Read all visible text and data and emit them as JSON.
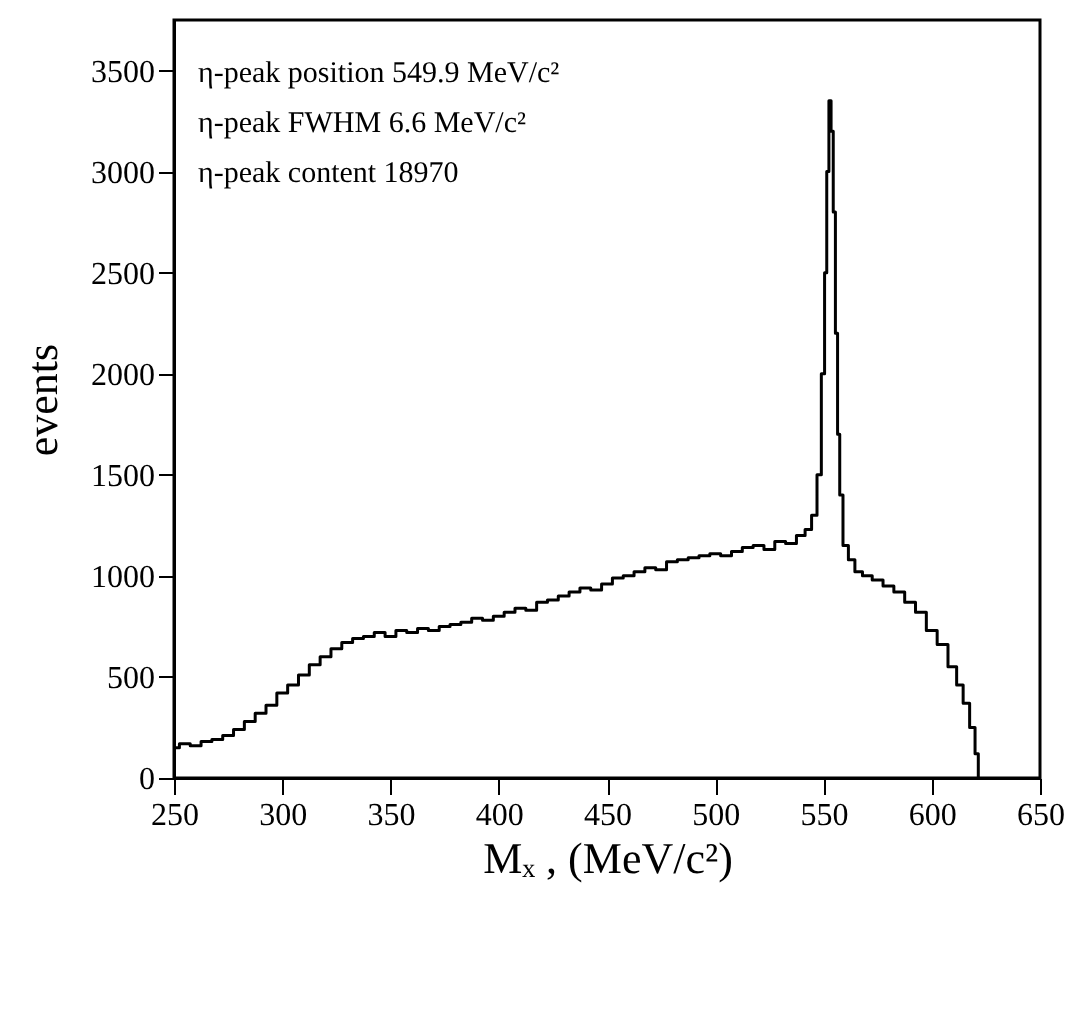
{
  "chart_data": {
    "type": "step",
    "xlabel": "Mₓ ,  (MeV/c²)",
    "ylabel": "events",
    "annotations": [
      "η-peak position  549.9 MeV/c²",
      "η-peak FWHM       6.6 MeV/c²",
      "η-peak content 18970"
    ],
    "xlim": [
      250,
      650
    ],
    "xticks": [
      250,
      300,
      350,
      400,
      450,
      500,
      550,
      600,
      650
    ],
    "ylim": [
      0,
      3750
    ],
    "yticks": [
      0,
      500,
      1000,
      1500,
      2000,
      2500,
      3000,
      3500
    ],
    "grid": false,
    "series": [
      {
        "color": "#000000",
        "x": [
          250,
          255,
          260,
          265,
          270,
          275,
          280,
          285,
          290,
          295,
          300,
          305,
          310,
          315,
          320,
          325,
          330,
          335,
          340,
          345,
          350,
          355,
          360,
          365,
          370,
          375,
          380,
          385,
          390,
          395,
          400,
          405,
          410,
          415,
          420,
          425,
          430,
          435,
          440,
          445,
          450,
          455,
          460,
          465,
          470,
          475,
          480,
          485,
          490,
          495,
          500,
          505,
          510,
          515,
          520,
          525,
          530,
          535,
          540,
          543,
          546,
          548,
          550,
          551,
          552,
          553,
          554,
          555,
          556,
          557,
          558,
          560,
          563,
          566,
          570,
          575,
          580,
          585,
          590,
          595,
          600,
          605,
          610,
          613,
          616,
          619,
          621,
          622
        ],
        "values": [
          150,
          170,
          160,
          180,
          190,
          210,
          240,
          280,
          320,
          360,
          420,
          460,
          510,
          560,
          600,
          640,
          670,
          690,
          700,
          720,
          700,
          730,
          720,
          740,
          730,
          750,
          760,
          770,
          790,
          780,
          800,
          820,
          840,
          830,
          870,
          880,
          900,
          920,
          940,
          930,
          960,
          990,
          1000,
          1020,
          1040,
          1030,
          1070,
          1080,
          1090,
          1100,
          1110,
          1100,
          1120,
          1140,
          1150,
          1130,
          1170,
          1160,
          1200,
          1230,
          1300,
          1500,
          2000,
          2500,
          3000,
          3350,
          3200,
          2800,
          2200,
          1700,
          1400,
          1150,
          1080,
          1020,
          1000,
          980,
          950,
          920,
          870,
          820,
          730,
          660,
          550,
          460,
          370,
          250,
          120,
          0
        ]
      }
    ]
  }
}
